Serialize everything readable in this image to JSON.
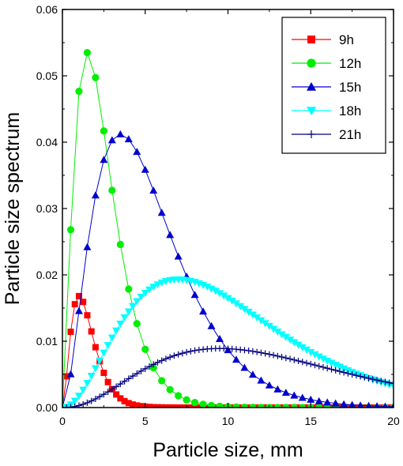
{
  "chart_data": {
    "type": "line",
    "xlabel": "Particle size, mm",
    "ylabel": "Particle size spectrum",
    "xlim": [
      0,
      20
    ],
    "ylim": [
      0,
      0.06
    ],
    "x_ticks": [
      "0",
      "5",
      "10",
      "15",
      "20"
    ],
    "y_ticks": [
      "0.00",
      "0.01",
      "0.02",
      "0.03",
      "0.04",
      "0.05",
      "0.06"
    ],
    "grid": false,
    "legend_position": "top-right",
    "series": [
      {
        "name": "9h",
        "color": "#ff0000",
        "marker": "square",
        "peak_x": 1.0,
        "peak_y": 0.0168,
        "shape": 2.0,
        "x_step": 0.25,
        "x_max": 20
      },
      {
        "name": "12h",
        "color": "#00ee00",
        "marker": "circle",
        "peak_x": 1.5,
        "peak_y": 0.0535,
        "shape": 1.6,
        "x_step": 0.5,
        "x_max": 20
      },
      {
        "name": "15h",
        "color": "#0000cc",
        "marker": "triangle-up",
        "peak_x": 3.5,
        "peak_y": 0.0412,
        "shape": 1.93,
        "x_step": 0.5,
        "x_max": 20
      },
      {
        "name": "18h",
        "color": "#00ffff",
        "marker": "triangle-down",
        "peak_x": 7.0,
        "peak_y": 0.0193,
        "shape": 2.2,
        "x_step": 0.25,
        "x_max": 20
      },
      {
        "name": "21h",
        "color": "#000080",
        "marker": "plus",
        "peak_x": 9.5,
        "peak_y": 0.0089,
        "shape": 2.5,
        "x_step": 0.25,
        "x_max": 20
      }
    ]
  }
}
